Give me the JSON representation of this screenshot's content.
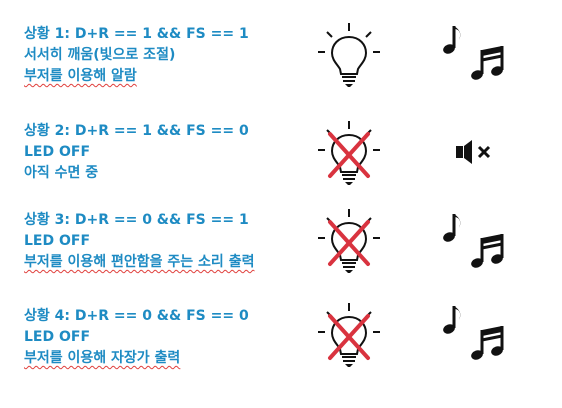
{
  "scenarios": [
    {
      "title": "상황 1: D+R == 1 && FS == 1",
      "lines": [
        "서서히 깨움(빛으로 조절)",
        "부저를 이용해 알람"
      ],
      "bulb": "lightbulb-on-icon",
      "sound": "music-notes-icon"
    },
    {
      "title": "상황 2: D+R == 1 && FS == 0",
      "lines": [
        "LED OFF",
        "아직 수면 중"
      ],
      "bulb": "lightbulb-off-icon",
      "sound": "speaker-muted-icon"
    },
    {
      "title": "상황 3: D+R == 0 && FS == 1",
      "lines": [
        "LED OFF",
        "부저를 이용해 편안함을 주는 소리 출력"
      ],
      "bulb": "lightbulb-off-icon",
      "sound": "music-notes-icon"
    },
    {
      "title": "상황 4: D+R == 0 && FS == 0",
      "lines": [
        "LED OFF",
        "부저를 이용해 자장가 출력"
      ],
      "bulb": "lightbulb-off-icon",
      "sound": "music-notes-icon"
    }
  ],
  "colors": {
    "text": "#1e8bc3",
    "cross": "#d9333f",
    "icon": "#111111"
  }
}
